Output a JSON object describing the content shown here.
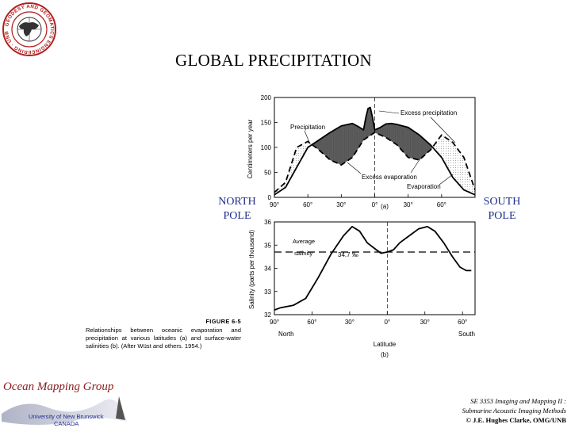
{
  "title": "GLOBAL PRECIPITATION",
  "north_pole": [
    "NORTH",
    "POLE"
  ],
  "south_pole": [
    "SOUTH",
    "POLE"
  ],
  "logo_text": "GEODESY AND GEOMATICS ENGINEERING · UNB",
  "caption": {
    "figure": "FIGURE 6-5",
    "text": "Relationships between oceanic evaporation and precipitation at various latitudes (a) and surface-water salinities (b). (After Wüst and others. 1954.)"
  },
  "footer": {
    "group": "Ocean Mapping Group",
    "university": "University of New Brunswick",
    "country": "CANADA",
    "course_line1": "SE 3353 Imaging and Mapping II :",
    "course_line2": "Submarine Acoustic Imaging Methods",
    "copyright": "© J.E. Hughes Clarke, OMG/UNB"
  },
  "chart_data": [
    {
      "type": "line",
      "panel_label": "(a)",
      "ylabel": "Centimeters per year",
      "ylim": [
        0,
        200
      ],
      "yticks": [
        0,
        50,
        100,
        150,
        200
      ],
      "xlim": [
        90,
        -90
      ],
      "xticks": [
        90,
        60,
        30,
        0,
        -30,
        -60
      ],
      "xtick_labels": [
        "90°",
        "60°",
        "30°",
        "0°",
        "30°",
        "60°"
      ],
      "series": [
        {
          "name": "Precipitation",
          "style": "solid",
          "x": [
            90,
            80,
            70,
            60,
            50,
            40,
            30,
            20,
            15,
            10,
            8,
            6,
            4,
            2,
            0,
            -5,
            -10,
            -15,
            -20,
            -30,
            -40,
            -50,
            -60,
            -70,
            -80,
            -90
          ],
          "y": [
            5,
            20,
            60,
            100,
            115,
            130,
            143,
            148,
            142,
            135,
            160,
            178,
            180,
            160,
            135,
            140,
            147,
            148,
            146,
            140,
            125,
            105,
            80,
            40,
            15,
            5
          ]
        },
        {
          "name": "Evaporation",
          "style": "dashed",
          "x": [
            90,
            80,
            70,
            60,
            50,
            40,
            30,
            20,
            10,
            0,
            -10,
            -20,
            -30,
            -40,
            -50,
            -60,
            -70,
            -80,
            -90
          ],
          "y": [
            10,
            30,
            100,
            112,
            95,
            75,
            65,
            80,
            115,
            130,
            120,
            105,
            80,
            75,
            95,
            125,
            110,
            80,
            15
          ]
        }
      ],
      "annotations": [
        "Precipitation",
        "Excess precipitation",
        "Excess evaporation",
        "Evaporation"
      ]
    },
    {
      "type": "line",
      "panel_label": "(b)",
      "ylabel": "Salinity (parts per thousand)",
      "xlabel": "Latitude",
      "ylim": [
        32,
        36
      ],
      "yticks": [
        32,
        33,
        34,
        35,
        36
      ],
      "xlim": [
        90,
        -70
      ],
      "xticks": [
        90,
        60,
        30,
        0,
        -30,
        -60
      ],
      "xtick_labels": [
        "90°",
        "60°",
        "30°",
        "0°",
        "30°",
        "60°"
      ],
      "x_end_labels": [
        "North",
        "South"
      ],
      "reference_line": {
        "value": 34.7,
        "label_line1": "Average",
        "label_line2": "salinity",
        "value_label": "34.7 ‰"
      },
      "series": [
        {
          "name": "Salinity",
          "x": [
            90,
            85,
            75,
            65,
            55,
            45,
            35,
            28,
            22,
            16,
            10,
            5,
            0,
            -5,
            -10,
            -20,
            -25,
            -32,
            -38,
            -45,
            -52,
            -58,
            -63,
            -67
          ],
          "y": [
            32.2,
            32.3,
            32.4,
            32.7,
            33.6,
            34.6,
            35.4,
            35.8,
            35.6,
            35.1,
            34.85,
            34.65,
            34.7,
            34.8,
            35.1,
            35.5,
            35.7,
            35.8,
            35.6,
            35.1,
            34.5,
            34.05,
            33.9,
            33.9
          ]
        }
      ]
    }
  ]
}
